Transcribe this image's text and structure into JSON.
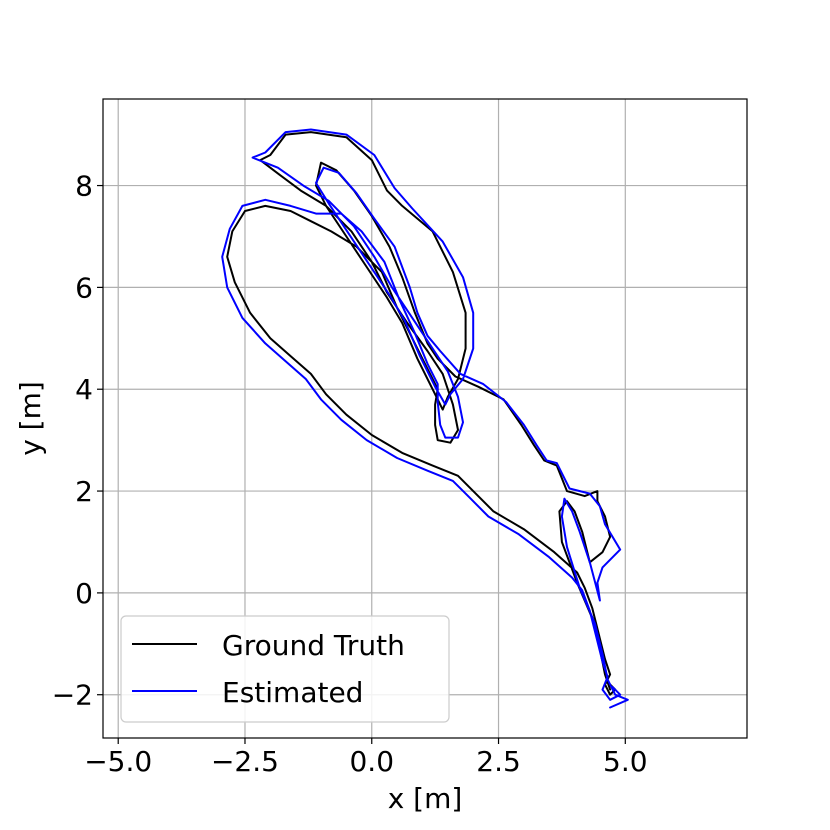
{
  "chart_data": {
    "type": "line",
    "title": "",
    "xlabel": "x [m]",
    "ylabel": "y [m]",
    "xlim": [
      -5.3,
      7.4
    ],
    "ylim": [
      -2.85,
      9.7
    ],
    "grid": true,
    "legend_position": "lower-left",
    "xticks": [
      -5.0,
      -2.5,
      0.0,
      2.5,
      5.0
    ],
    "xtick_labels": [
      "−5.0",
      "−2.5",
      "0.0",
      "2.5",
      "5.0"
    ],
    "yticks": [
      -2,
      0,
      2,
      4,
      6,
      8
    ],
    "ytick_labels": [
      "−2",
      "0",
      "2",
      "4",
      "6",
      "8"
    ],
    "series": [
      {
        "name": "Ground Truth",
        "color": "#000000",
        "points": [
          [
            4.7,
            -1.8
          ],
          [
            4.8,
            -1.9
          ],
          [
            4.7,
            -2.0
          ],
          [
            4.6,
            -1.8
          ],
          [
            4.7,
            -1.6
          ],
          [
            4.6,
            -1.3
          ],
          [
            4.5,
            -0.9
          ],
          [
            4.35,
            -0.3
          ],
          [
            4.2,
            0.1
          ],
          [
            4.05,
            0.4
          ],
          [
            3.6,
            0.8
          ],
          [
            3.0,
            1.25
          ],
          [
            2.4,
            1.6
          ],
          [
            2.0,
            2.0
          ],
          [
            1.7,
            2.3
          ],
          [
            1.2,
            2.5
          ],
          [
            0.6,
            2.75
          ],
          [
            0.0,
            3.1
          ],
          [
            -0.5,
            3.5
          ],
          [
            -0.9,
            3.9
          ],
          [
            -1.2,
            4.3
          ],
          [
            -1.6,
            4.65
          ],
          [
            -2.0,
            5.0
          ],
          [
            -2.4,
            5.5
          ],
          [
            -2.7,
            6.1
          ],
          [
            -2.85,
            6.6
          ],
          [
            -2.75,
            7.1
          ],
          [
            -2.5,
            7.5
          ],
          [
            -2.1,
            7.6
          ],
          [
            -1.6,
            7.5
          ],
          [
            -1.2,
            7.3
          ],
          [
            -0.8,
            7.1
          ],
          [
            -0.3,
            6.8
          ],
          [
            0.2,
            6.3
          ],
          [
            0.5,
            5.6
          ],
          [
            0.8,
            5.0
          ],
          [
            1.1,
            4.4
          ],
          [
            1.3,
            4.0
          ],
          [
            1.25,
            3.7
          ],
          [
            1.25,
            3.3
          ],
          [
            1.3,
            3.0
          ],
          [
            1.55,
            2.95
          ],
          [
            1.7,
            3.2
          ],
          [
            1.6,
            3.7
          ],
          [
            1.4,
            4.3
          ],
          [
            1.1,
            4.75
          ],
          [
            0.7,
            5.3
          ],
          [
            0.3,
            5.9
          ],
          [
            0.0,
            6.5
          ],
          [
            -0.4,
            7.1
          ],
          [
            -0.9,
            7.6
          ],
          [
            -1.4,
            7.9
          ],
          [
            -1.8,
            8.2
          ],
          [
            -2.2,
            8.5
          ],
          [
            -2.0,
            8.6
          ],
          [
            -1.7,
            9.0
          ],
          [
            -1.2,
            9.05
          ],
          [
            -0.5,
            8.95
          ],
          [
            0.0,
            8.5
          ],
          [
            0.3,
            7.9
          ],
          [
            0.6,
            7.6
          ],
          [
            1.2,
            7.1
          ],
          [
            1.6,
            6.3
          ],
          [
            1.85,
            5.5
          ],
          [
            1.85,
            4.8
          ],
          [
            1.7,
            4.2
          ],
          [
            1.5,
            3.85
          ],
          [
            1.4,
            3.6
          ],
          [
            1.2,
            4.0
          ],
          [
            0.9,
            4.6
          ],
          [
            0.6,
            5.3
          ],
          [
            0.3,
            5.8
          ],
          [
            -0.1,
            6.4
          ],
          [
            -0.5,
            7.0
          ],
          [
            -0.9,
            7.6
          ],
          [
            -1.1,
            8.0
          ],
          [
            -1.0,
            8.45
          ],
          [
            -0.7,
            8.3
          ],
          [
            -0.35,
            7.9
          ],
          [
            0.0,
            7.4
          ],
          [
            0.35,
            6.8
          ],
          [
            0.6,
            6.2
          ],
          [
            0.85,
            5.5
          ],
          [
            1.1,
            4.9
          ],
          [
            1.3,
            4.6
          ],
          [
            1.65,
            4.25
          ],
          [
            2.1,
            4.05
          ],
          [
            2.6,
            3.8
          ],
          [
            2.95,
            3.3
          ],
          [
            3.2,
            2.9
          ],
          [
            3.4,
            2.6
          ],
          [
            3.65,
            2.5
          ],
          [
            3.85,
            2.0
          ],
          [
            4.2,
            1.9
          ],
          [
            4.45,
            2.0
          ],
          [
            4.45,
            1.8
          ],
          [
            4.6,
            1.5
          ],
          [
            4.7,
            1.1
          ],
          [
            4.55,
            0.8
          ],
          [
            4.3,
            0.6
          ],
          [
            4.15,
            1.2
          ],
          [
            4.0,
            1.6
          ],
          [
            3.85,
            1.8
          ],
          [
            3.7,
            1.6
          ],
          [
            3.75,
            1.0
          ],
          [
            4.05,
            0.2
          ],
          [
            4.35,
            -0.5
          ],
          [
            4.5,
            -1.1
          ],
          [
            4.6,
            -1.6
          ],
          [
            4.7,
            -1.9
          ]
        ]
      },
      {
        "name": "Estimated",
        "color": "#0000ff",
        "points": [
          [
            4.75,
            -1.85
          ],
          [
            4.9,
            -2.0
          ],
          [
            4.7,
            -2.1
          ],
          [
            4.55,
            -1.9
          ],
          [
            4.65,
            -1.65
          ],
          [
            4.55,
            -1.35
          ],
          [
            4.45,
            -0.95
          ],
          [
            4.3,
            -0.35
          ],
          [
            4.15,
            0.05
          ],
          [
            3.95,
            0.3
          ],
          [
            3.5,
            0.7
          ],
          [
            2.9,
            1.15
          ],
          [
            2.3,
            1.5
          ],
          [
            1.9,
            1.9
          ],
          [
            1.6,
            2.2
          ],
          [
            1.1,
            2.4
          ],
          [
            0.5,
            2.65
          ],
          [
            -0.1,
            3.0
          ],
          [
            -0.6,
            3.4
          ],
          [
            -1.0,
            3.8
          ],
          [
            -1.3,
            4.2
          ],
          [
            -1.7,
            4.55
          ],
          [
            -2.1,
            4.9
          ],
          [
            -2.55,
            5.4
          ],
          [
            -2.85,
            6.0
          ],
          [
            -2.95,
            6.6
          ],
          [
            -2.8,
            7.15
          ],
          [
            -2.55,
            7.6
          ],
          [
            -2.1,
            7.72
          ],
          [
            -1.6,
            7.6
          ],
          [
            -1.1,
            7.45
          ],
          [
            -0.6,
            7.45
          ],
          [
            -0.2,
            7.1
          ],
          [
            0.25,
            6.5
          ],
          [
            0.55,
            5.75
          ],
          [
            0.85,
            5.1
          ],
          [
            1.1,
            4.5
          ],
          [
            1.3,
            4.1
          ],
          [
            1.3,
            3.75
          ],
          [
            1.35,
            3.3
          ],
          [
            1.45,
            3.05
          ],
          [
            1.7,
            3.05
          ],
          [
            1.8,
            3.35
          ],
          [
            1.7,
            3.85
          ],
          [
            1.5,
            4.35
          ],
          [
            1.2,
            4.8
          ],
          [
            0.8,
            5.4
          ],
          [
            0.4,
            6.0
          ],
          [
            0.05,
            6.6
          ],
          [
            -0.35,
            7.2
          ],
          [
            -0.85,
            7.7
          ],
          [
            -1.35,
            8.0
          ],
          [
            -1.85,
            8.35
          ],
          [
            -2.35,
            8.55
          ],
          [
            -2.1,
            8.65
          ],
          [
            -1.7,
            9.05
          ],
          [
            -1.2,
            9.1
          ],
          [
            -0.5,
            9.0
          ],
          [
            0.05,
            8.6
          ],
          [
            0.45,
            7.95
          ],
          [
            0.8,
            7.55
          ],
          [
            1.4,
            6.9
          ],
          [
            1.8,
            6.2
          ],
          [
            2.0,
            5.5
          ],
          [
            2.0,
            4.8
          ],
          [
            1.8,
            4.2
          ],
          [
            1.55,
            3.9
          ],
          [
            1.45,
            3.7
          ],
          [
            1.25,
            4.05
          ],
          [
            0.95,
            4.65
          ],
          [
            0.65,
            5.35
          ],
          [
            0.35,
            5.85
          ],
          [
            -0.05,
            6.45
          ],
          [
            -0.45,
            7.05
          ],
          [
            -0.85,
            7.65
          ],
          [
            -1.1,
            8.05
          ],
          [
            -0.95,
            8.35
          ],
          [
            -0.65,
            8.25
          ],
          [
            -0.3,
            7.85
          ],
          [
            0.05,
            7.35
          ],
          [
            0.45,
            6.8
          ],
          [
            0.75,
            6.0
          ],
          [
            0.9,
            5.5
          ],
          [
            1.1,
            5.05
          ],
          [
            1.35,
            4.75
          ],
          [
            1.75,
            4.3
          ],
          [
            2.2,
            4.1
          ],
          [
            2.65,
            3.75
          ],
          [
            3.0,
            3.3
          ],
          [
            3.25,
            2.9
          ],
          [
            3.45,
            2.6
          ],
          [
            3.65,
            2.55
          ],
          [
            3.9,
            2.05
          ],
          [
            4.3,
            1.95
          ],
          [
            4.5,
            1.7
          ],
          [
            4.6,
            1.35
          ],
          [
            4.9,
            0.85
          ],
          [
            4.55,
            0.5
          ],
          [
            4.45,
            0.2
          ],
          [
            4.5,
            -0.15
          ],
          [
            4.3,
            0.6
          ],
          [
            4.1,
            1.2
          ],
          [
            3.95,
            1.6
          ],
          [
            3.8,
            1.85
          ],
          [
            3.75,
            1.5
          ],
          [
            3.85,
            0.9
          ],
          [
            4.1,
            0.1
          ],
          [
            4.4,
            -0.6
          ],
          [
            4.55,
            -1.2
          ],
          [
            4.65,
            -1.7
          ],
          [
            4.8,
            -2.0
          ],
          [
            5.05,
            -2.1
          ],
          [
            4.7,
            -2.25
          ]
        ]
      }
    ]
  }
}
